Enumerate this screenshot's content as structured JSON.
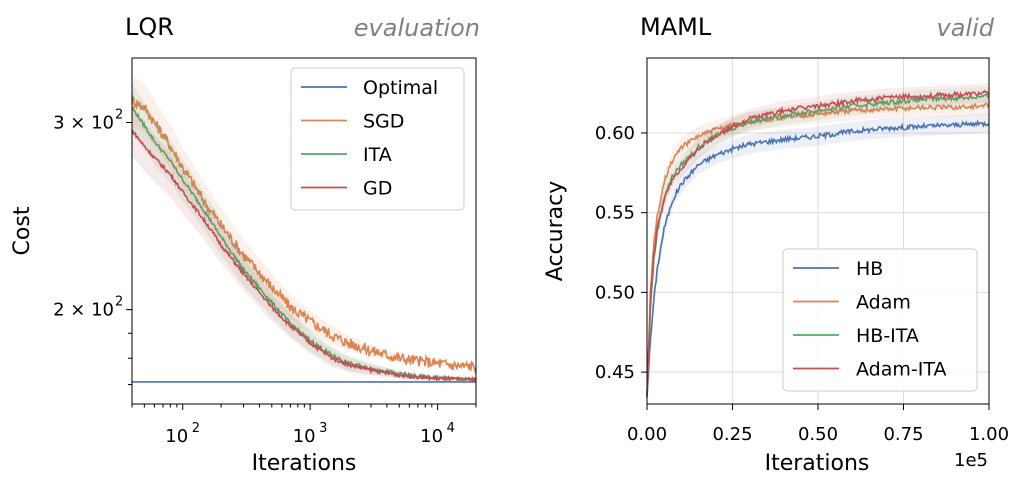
{
  "chart_data": [
    {
      "type": "line",
      "title": "LQR",
      "subtitle": "evaluation",
      "xlabel": "Iterations",
      "ylabel": "Cost",
      "xscale": "log",
      "yscale": "log",
      "xlim": [
        40,
        20000
      ],
      "ylim": [
        163,
        345
      ],
      "xticks": [
        {
          "value": 100,
          "label": "10",
          "exp": "2"
        },
        {
          "value": 1000,
          "label": "10",
          "exp": "3"
        },
        {
          "value": 10000,
          "label": "10",
          "exp": "4"
        }
      ],
      "yticks": [
        {
          "value": 200,
          "label": "2 × 10",
          "exp": "2"
        },
        {
          "value": 300,
          "label": "3 × 10",
          "exp": "2"
        }
      ],
      "grid": false,
      "legend_position": "top-right",
      "series": [
        {
          "name": "Optimal",
          "color": "#4C72B0",
          "x": [
            40,
            20000
          ],
          "y": [
            171,
            171
          ]
        },
        {
          "name": "SGD",
          "color": "#DD8452",
          "x": [
            40,
            50,
            60,
            80,
            100,
            150,
            200,
            300,
            500,
            700,
            1000,
            1500,
            2000,
            3000,
            5000,
            7000,
            10000,
            15000,
            20000
          ],
          "y": [
            315,
            310,
            300,
            285,
            272,
            252,
            240,
            225,
            210,
            201,
            195,
            189,
            186,
            183,
            180,
            179,
            178,
            177,
            177
          ]
        },
        {
          "name": "ITA",
          "color": "#55A868",
          "x": [
            40,
            50,
            60,
            80,
            100,
            150,
            200,
            300,
            500,
            700,
            1000,
            1500,
            2000,
            3000,
            5000,
            7000,
            10000,
            15000,
            20000
          ],
          "y": [
            310,
            298,
            288,
            276,
            265,
            247,
            234,
            218,
            203,
            194,
            187,
            181,
            178,
            176,
            174,
            173,
            172.5,
            172,
            172
          ]
        },
        {
          "name": "GD",
          "color": "#C44E52",
          "x": [
            40,
            50,
            60,
            80,
            100,
            150,
            200,
            300,
            500,
            700,
            1000,
            1500,
            2000,
            3000,
            5000,
            7000,
            10000,
            15000,
            20000
          ],
          "y": [
            295,
            285,
            278,
            268,
            258,
            242,
            230,
            216,
            201,
            193,
            186,
            180,
            177.5,
            175.5,
            173.5,
            172.8,
            172.3,
            172,
            171.8
          ]
        }
      ]
    },
    {
      "type": "line",
      "title": "MAML",
      "subtitle": "valid",
      "xlabel": "Iterations",
      "ylabel": "Accuracy",
      "x_offset_text": "1e5",
      "xlim": [
        0,
        1.0
      ],
      "ylim": [
        0.43,
        0.647
      ],
      "xticks": [
        0.0,
        0.25,
        0.5,
        0.75,
        1.0
      ],
      "xtick_labels": [
        "0.00",
        "0.25",
        "0.50",
        "0.75",
        "1.00"
      ],
      "yticks": [
        0.45,
        0.5,
        0.55,
        0.6
      ],
      "ytick_labels": [
        "0.45",
        "0.50",
        "0.55",
        "0.60"
      ],
      "grid": true,
      "legend_position": "bottom-right",
      "series": [
        {
          "name": "HB",
          "color": "#4C72B0",
          "x": [
            0,
            0.01,
            0.02,
            0.03,
            0.05,
            0.075,
            0.1,
            0.15,
            0.2,
            0.25,
            0.3,
            0.4,
            0.5,
            0.6,
            0.7,
            0.8,
            0.9,
            1.0
          ],
          "y": [
            0.435,
            0.47,
            0.495,
            0.515,
            0.54,
            0.558,
            0.568,
            0.58,
            0.586,
            0.59,
            0.593,
            0.596,
            0.598,
            0.601,
            0.603,
            0.604,
            0.605,
            0.606
          ]
        },
        {
          "name": "Adam",
          "color": "#DD8452",
          "x": [
            0,
            0.01,
            0.02,
            0.03,
            0.05,
            0.075,
            0.1,
            0.15,
            0.2,
            0.25,
            0.3,
            0.4,
            0.5,
            0.6,
            0.7,
            0.8,
            0.9,
            1.0
          ],
          "y": [
            0.435,
            0.5,
            0.53,
            0.548,
            0.57,
            0.583,
            0.591,
            0.598,
            0.602,
            0.605,
            0.607,
            0.61,
            0.612,
            0.614,
            0.615,
            0.616,
            0.616,
            0.617
          ]
        },
        {
          "name": "HB-ITA",
          "color": "#55A868",
          "x": [
            0,
            0.01,
            0.02,
            0.03,
            0.05,
            0.075,
            0.1,
            0.15,
            0.2,
            0.25,
            0.3,
            0.4,
            0.5,
            0.6,
            0.7,
            0.8,
            0.9,
            1.0
          ],
          "y": [
            0.435,
            0.49,
            0.52,
            0.538,
            0.56,
            0.573,
            0.58,
            0.591,
            0.598,
            0.603,
            0.607,
            0.611,
            0.614,
            0.617,
            0.619,
            0.621,
            0.622,
            0.623
          ]
        },
        {
          "name": "Adam-ITA",
          "color": "#C44E52",
          "x": [
            0,
            0.01,
            0.02,
            0.03,
            0.05,
            0.075,
            0.1,
            0.15,
            0.2,
            0.25,
            0.3,
            0.4,
            0.5,
            0.6,
            0.7,
            0.8,
            0.9,
            1.0
          ],
          "y": [
            0.435,
            0.495,
            0.523,
            0.54,
            0.558,
            0.571,
            0.578,
            0.59,
            0.598,
            0.604,
            0.609,
            0.614,
            0.617,
            0.62,
            0.622,
            0.623,
            0.624,
            0.625
          ]
        }
      ]
    }
  ]
}
